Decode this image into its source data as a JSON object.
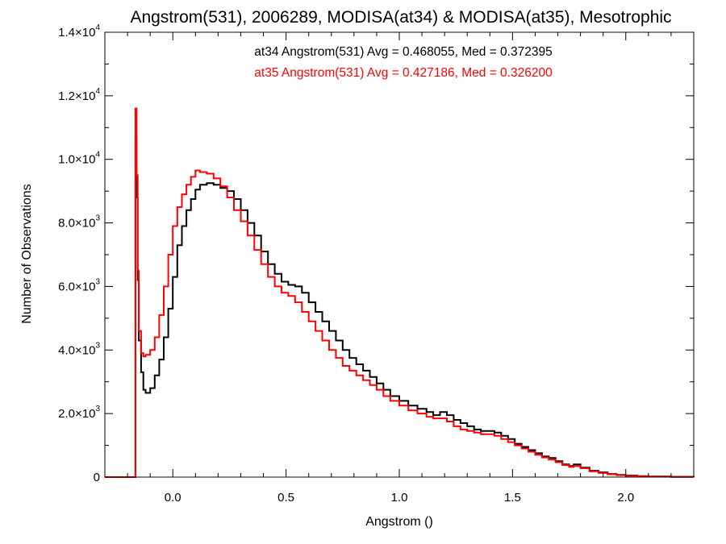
{
  "chart_data": {
    "type": "line",
    "step": true,
    "title": "Angstrom(531), 2006289, MODISA(at34) & MODISA(at35), Mesotrophic",
    "xlabel": "Angstrom ()",
    "ylabel": "Number of Observations",
    "xlim": [
      -0.3,
      2.3
    ],
    "ylim": [
      0,
      14000
    ],
    "xticks": [
      0.0,
      0.5,
      1.0,
      1.5,
      2.0
    ],
    "xtick_labels": [
      "0.0",
      "0.5",
      "1.0",
      "1.5",
      "2.0"
    ],
    "yticks": [
      {
        "value": 0,
        "mantissa": "0",
        "exponent": ""
      },
      {
        "value": 2000,
        "mantissa": "2.0×10",
        "exponent": "3"
      },
      {
        "value": 4000,
        "mantissa": "4.0×10",
        "exponent": "3"
      },
      {
        "value": 6000,
        "mantissa": "6.0×10",
        "exponent": "3"
      },
      {
        "value": 8000,
        "mantissa": "8.0×10",
        "exponent": "3"
      },
      {
        "value": 10000,
        "mantissa": "1.0×10",
        "exponent": "4"
      },
      {
        "value": 12000,
        "mantissa": "1.2×10",
        "exponent": "4"
      },
      {
        "value": 14000,
        "mantissa": "1.4×10",
        "exponent": "4"
      }
    ],
    "grid": false,
    "series": [
      {
        "name": "at34",
        "label": "at34 Angstrom(531) Avg = 0.468055, Med = 0.372395",
        "color": "#000000",
        "points": [
          [
            -0.3,
            0
          ],
          [
            -0.17,
            0
          ],
          [
            -0.165,
            10700
          ],
          [
            -0.16,
            8800
          ],
          [
            -0.155,
            6200
          ],
          [
            -0.15,
            4300
          ],
          [
            -0.14,
            3300
          ],
          [
            -0.13,
            2750
          ],
          [
            -0.12,
            2650
          ],
          [
            -0.1,
            2800
          ],
          [
            -0.08,
            3200
          ],
          [
            -0.06,
            3700
          ],
          [
            -0.04,
            4400
          ],
          [
            -0.02,
            5300
          ],
          [
            0.0,
            6300
          ],
          [
            0.02,
            7300
          ],
          [
            0.04,
            7900
          ],
          [
            0.06,
            8400
          ],
          [
            0.08,
            8750
          ],
          [
            0.1,
            9050
          ],
          [
            0.12,
            9200
          ],
          [
            0.15,
            9250
          ],
          [
            0.18,
            9200
          ],
          [
            0.21,
            9100
          ],
          [
            0.24,
            9000
          ],
          [
            0.27,
            8750
          ],
          [
            0.3,
            8400
          ],
          [
            0.33,
            8000
          ],
          [
            0.36,
            7600
          ],
          [
            0.39,
            7100
          ],
          [
            0.42,
            6700
          ],
          [
            0.45,
            6400
          ],
          [
            0.48,
            6150
          ],
          [
            0.51,
            6050
          ],
          [
            0.54,
            6000
          ],
          [
            0.57,
            5800
          ],
          [
            0.6,
            5500
          ],
          [
            0.63,
            5200
          ],
          [
            0.66,
            4900
          ],
          [
            0.69,
            4600
          ],
          [
            0.72,
            4300
          ],
          [
            0.75,
            4000
          ],
          [
            0.78,
            3750
          ],
          [
            0.81,
            3550
          ],
          [
            0.84,
            3350
          ],
          [
            0.87,
            3150
          ],
          [
            0.9,
            2950
          ],
          [
            0.93,
            2750
          ],
          [
            0.96,
            2550
          ],
          [
            1.0,
            2400
          ],
          [
            1.04,
            2250
          ],
          [
            1.08,
            2150
          ],
          [
            1.12,
            2050
          ],
          [
            1.15,
            1950
          ],
          [
            1.18,
            2050
          ],
          [
            1.21,
            1950
          ],
          [
            1.24,
            1800
          ],
          [
            1.27,
            1700
          ],
          [
            1.3,
            1600
          ],
          [
            1.33,
            1500
          ],
          [
            1.36,
            1450
          ],
          [
            1.39,
            1450
          ],
          [
            1.42,
            1400
          ],
          [
            1.45,
            1300
          ],
          [
            1.48,
            1200
          ],
          [
            1.51,
            1050
          ],
          [
            1.54,
            950
          ],
          [
            1.57,
            850
          ],
          [
            1.6,
            750
          ],
          [
            1.63,
            650
          ],
          [
            1.66,
            600
          ],
          [
            1.69,
            500
          ],
          [
            1.72,
            400
          ],
          [
            1.75,
            350
          ],
          [
            1.77,
            400
          ],
          [
            1.8,
            300
          ],
          [
            1.84,
            200
          ],
          [
            1.88,
            150
          ],
          [
            1.92,
            100
          ],
          [
            1.96,
            70
          ],
          [
            2.0,
            50
          ],
          [
            2.05,
            30
          ],
          [
            2.1,
            20
          ],
          [
            2.2,
            10
          ],
          [
            2.3,
            0
          ]
        ]
      },
      {
        "name": "at35",
        "label": "at35 Angstrom(531) Avg = 0.427186, Med = 0.326200",
        "color": "#ff0000",
        "points": [
          [
            -0.3,
            0
          ],
          [
            -0.17,
            0
          ],
          [
            -0.165,
            11600
          ],
          [
            -0.16,
            9500
          ],
          [
            -0.155,
            6500
          ],
          [
            -0.15,
            4600
          ],
          [
            -0.14,
            3900
          ],
          [
            -0.13,
            3800
          ],
          [
            -0.12,
            3850
          ],
          [
            -0.1,
            4000
          ],
          [
            -0.08,
            4400
          ],
          [
            -0.06,
            5100
          ],
          [
            -0.04,
            6000
          ],
          [
            -0.02,
            7000
          ],
          [
            0.0,
            7900
          ],
          [
            0.02,
            8500
          ],
          [
            0.04,
            8900
          ],
          [
            0.06,
            9200
          ],
          [
            0.08,
            9450
          ],
          [
            0.1,
            9650
          ],
          [
            0.12,
            9600
          ],
          [
            0.15,
            9550
          ],
          [
            0.18,
            9400
          ],
          [
            0.21,
            9150
          ],
          [
            0.24,
            8800
          ],
          [
            0.27,
            8400
          ],
          [
            0.3,
            8050
          ],
          [
            0.33,
            7600
          ],
          [
            0.36,
            7150
          ],
          [
            0.39,
            6700
          ],
          [
            0.42,
            6300
          ],
          [
            0.45,
            6000
          ],
          [
            0.48,
            5800
          ],
          [
            0.51,
            5700
          ],
          [
            0.54,
            5500
          ],
          [
            0.57,
            5200
          ],
          [
            0.6,
            4900
          ],
          [
            0.63,
            4600
          ],
          [
            0.66,
            4300
          ],
          [
            0.69,
            4000
          ],
          [
            0.72,
            3750
          ],
          [
            0.75,
            3500
          ],
          [
            0.78,
            3350
          ],
          [
            0.81,
            3200
          ],
          [
            0.84,
            3050
          ],
          [
            0.87,
            2900
          ],
          [
            0.9,
            2750
          ],
          [
            0.93,
            2550
          ],
          [
            0.96,
            2400
          ],
          [
            1.0,
            2250
          ],
          [
            1.04,
            2100
          ],
          [
            1.08,
            2000
          ],
          [
            1.12,
            1900
          ],
          [
            1.15,
            1850
          ],
          [
            1.18,
            1850
          ],
          [
            1.21,
            1750
          ],
          [
            1.24,
            1600
          ],
          [
            1.27,
            1500
          ],
          [
            1.3,
            1450
          ],
          [
            1.33,
            1400
          ],
          [
            1.36,
            1350
          ],
          [
            1.39,
            1350
          ],
          [
            1.42,
            1300
          ],
          [
            1.45,
            1200
          ],
          [
            1.48,
            1100
          ],
          [
            1.51,
            1000
          ],
          [
            1.54,
            900
          ],
          [
            1.57,
            800
          ],
          [
            1.6,
            700
          ],
          [
            1.63,
            620
          ],
          [
            1.66,
            550
          ],
          [
            1.69,
            470
          ],
          [
            1.72,
            380
          ],
          [
            1.75,
            320
          ],
          [
            1.77,
            350
          ],
          [
            1.8,
            280
          ],
          [
            1.84,
            180
          ],
          [
            1.88,
            130
          ],
          [
            1.92,
            90
          ],
          [
            1.96,
            60
          ],
          [
            2.0,
            40
          ],
          [
            2.05,
            25
          ],
          [
            2.1,
            15
          ],
          [
            2.2,
            8
          ],
          [
            2.3,
            0
          ]
        ]
      }
    ]
  }
}
